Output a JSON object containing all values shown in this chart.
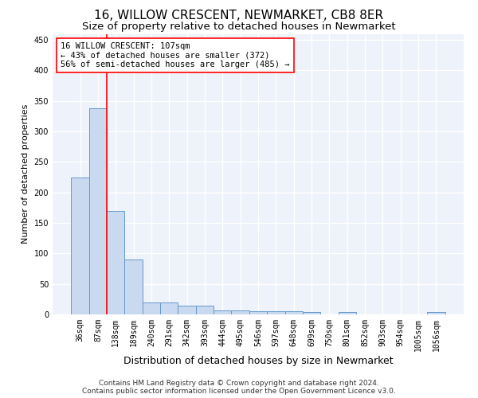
{
  "title": "16, WILLOW CRESCENT, NEWMARKET, CB8 8ER",
  "subtitle": "Size of property relative to detached houses in Newmarket",
  "xlabel": "Distribution of detached houses by size in Newmarket",
  "ylabel": "Number of detached properties",
  "categories": [
    "36sqm",
    "87sqm",
    "138sqm",
    "189sqm",
    "240sqm",
    "291sqm",
    "342sqm",
    "393sqm",
    "444sqm",
    "495sqm",
    "546sqm",
    "597sqm",
    "648sqm",
    "699sqm",
    "750sqm",
    "801sqm",
    "852sqm",
    "903sqm",
    "954sqm",
    "1005sqm",
    "1056sqm"
  ],
  "values": [
    225,
    338,
    170,
    90,
    20,
    20,
    15,
    15,
    6,
    6,
    5,
    5,
    5,
    4,
    0,
    4,
    0,
    0,
    0,
    0,
    4
  ],
  "bar_color": "#c9d9f0",
  "bar_edge_color": "#6699cc",
  "bar_edge_width": 0.7,
  "vline_color": "red",
  "vline_linewidth": 1.2,
  "vline_x": 1.5,
  "annotation_text": "16 WILLOW CRESCENT: 107sqm\n← 43% of detached houses are smaller (372)\n56% of semi-detached houses are larger (485) →",
  "annotation_box_color": "white",
  "annotation_box_edgecolor": "red",
  "annotation_fontsize": 7.5,
  "ylim": [
    0,
    460
  ],
  "yticks": [
    0,
    50,
    100,
    150,
    200,
    250,
    300,
    350,
    400,
    450
  ],
  "bg_color": "#eef2fa",
  "grid_color": "white",
  "title_fontsize": 11,
  "subtitle_fontsize": 9.5,
  "xlabel_fontsize": 9,
  "ylabel_fontsize": 8,
  "tick_fontsize": 7,
  "footer_fontsize": 6.5,
  "footer_line1": "Contains HM Land Registry data © Crown copyright and database right 2024.",
  "footer_line2": "Contains public sector information licensed under the Open Government Licence v3.0."
}
